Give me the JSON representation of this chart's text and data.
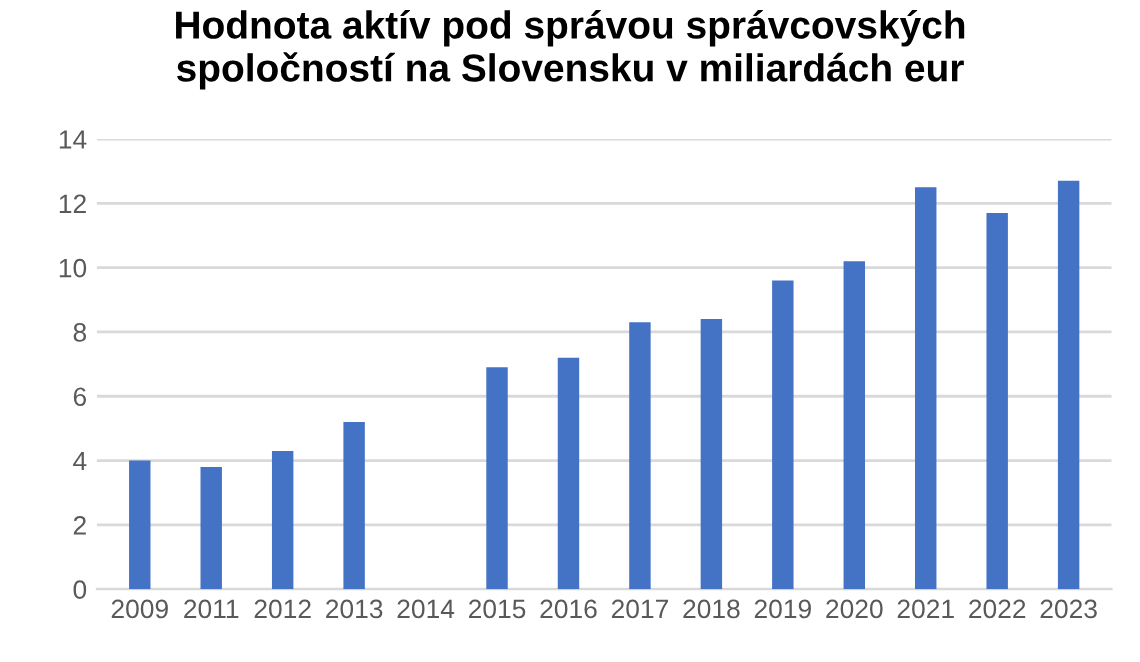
{
  "chart_data": {
    "type": "bar",
    "title": "Hodnota aktív pod správou správcovských\nspoločností na Slovensku v miliardách eur",
    "categories": [
      "2009",
      "2011",
      "2012",
      "2013",
      "2014",
      "2015",
      "2016",
      "2017",
      "2018",
      "2019",
      "2020",
      "2021",
      "2022",
      "2023"
    ],
    "values": [
      4.0,
      3.8,
      4.3,
      5.2,
      null,
      6.9,
      7.2,
      8.3,
      8.4,
      9.6,
      10.2,
      12.5,
      11.7,
      12.7
    ],
    "color": "#4472c4",
    "ylim": [
      0,
      14
    ],
    "yticks": [
      0,
      2,
      4,
      6,
      8,
      10,
      12,
      14
    ],
    "grid": "y",
    "legend": false
  }
}
